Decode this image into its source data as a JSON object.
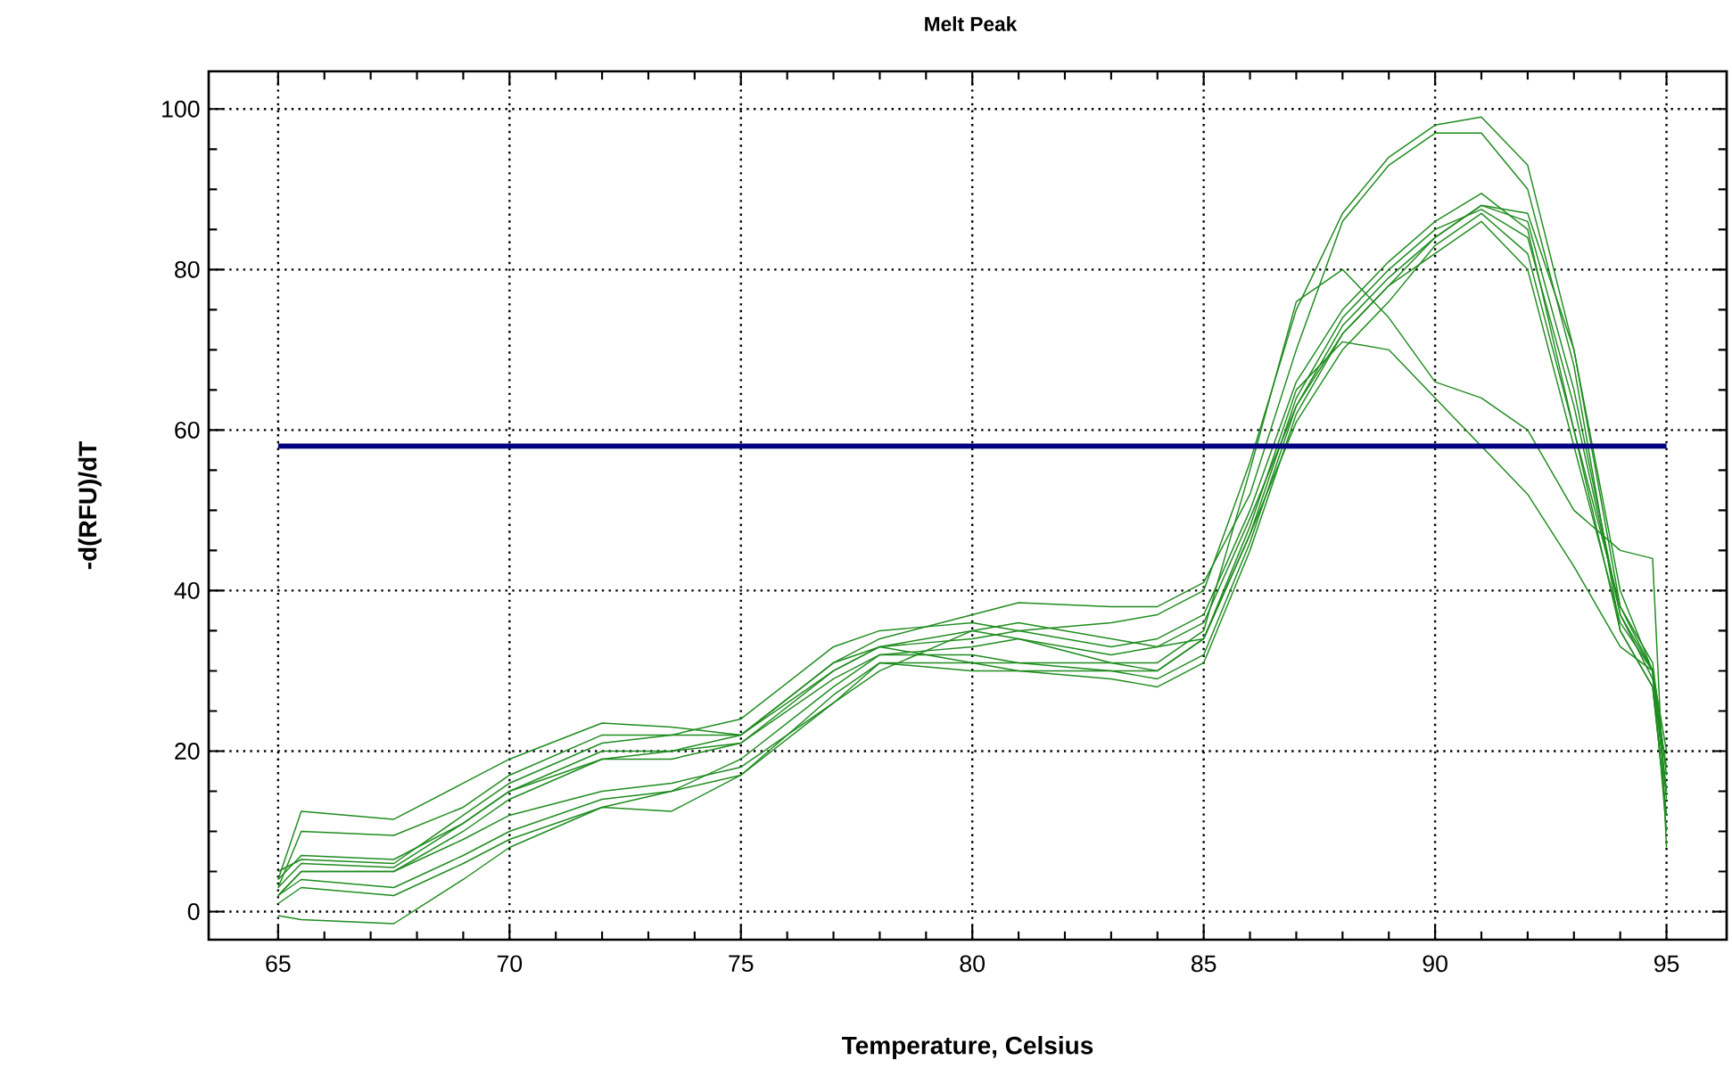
{
  "chart_data": {
    "type": "line",
    "title": "Melt Peak",
    "xlabel": "Temperature, Celsius",
    "ylabel": "-d(RFU)/dT",
    "xlim": [
      63.5,
      96.3
    ],
    "ylim": [
      -3.5,
      104.7
    ],
    "xticks": [
      65,
      70,
      75,
      80,
      85,
      90,
      95
    ],
    "yticks": [
      0,
      20,
      40,
      60,
      80,
      100
    ],
    "grid": true,
    "marker": "none",
    "line_style": "solid",
    "x": [
      65,
      65.5,
      67.5,
      69,
      70,
      72,
      73.5,
      75,
      77,
      78,
      80,
      81,
      83,
      84,
      85,
      86,
      87,
      88,
      89,
      90,
      91,
      92,
      93,
      94,
      94.7,
      95
    ],
    "series": [
      {
        "color": "#1f8c1f",
        "values": [
          4,
          12.5,
          11.5,
          16,
          19,
          23.5,
          23,
          22,
          31,
          34,
          37,
          38.5,
          38,
          38,
          41,
          52,
          70,
          86,
          93,
          97,
          97,
          90,
          68,
          35,
          28,
          12
        ]
      },
      {
        "color": "#1f8c1f",
        "values": [
          3,
          10,
          9.5,
          13,
          17,
          22,
          22,
          24,
          33,
          35,
          36,
          35,
          36,
          37,
          40,
          56,
          75,
          87,
          94,
          98,
          99,
          93,
          70,
          38,
          30,
          10
        ]
      },
      {
        "color": "#1f8c1f",
        "values": [
          5,
          6.5,
          6,
          12,
          16,
          21,
          22,
          22,
          31,
          33,
          34,
          35,
          33,
          34,
          37,
          50,
          66,
          75,
          81,
          86,
          89.5,
          85,
          60,
          38,
          31,
          17
        ]
      },
      {
        "color": "#1f8c1f",
        "values": [
          3,
          6,
          5.5,
          11,
          15,
          20,
          20,
          21,
          30,
          33,
          35,
          34,
          32,
          33,
          36,
          49,
          63,
          72,
          78,
          84,
          88,
          87,
          70,
          40,
          30,
          15
        ]
      },
      {
        "color": "#1f8c1f",
        "values": [
          2,
          5,
          5,
          10,
          14,
          19,
          19,
          21,
          29,
          32,
          33,
          34,
          31,
          30,
          34,
          47,
          61,
          70,
          76,
          83,
          87,
          82,
          60,
          35,
          28,
          12
        ]
      },
      {
        "color": "#1f8c1f",
        "values": [
          4,
          7,
          6.5,
          11,
          15,
          19,
          20,
          22,
          30,
          33,
          31,
          31,
          31,
          31,
          35,
          55,
          76,
          80,
          74,
          66,
          64,
          60,
          50,
          45,
          44,
          8
        ]
      },
      {
        "color": "#1f8c1f",
        "values": [
          2,
          5,
          5,
          9,
          12,
          15,
          16,
          18,
          26,
          31,
          30,
          30,
          30,
          30,
          34,
          48,
          65,
          71,
          70,
          64,
          58,
          52,
          43,
          33,
          30,
          15
        ]
      },
      {
        "color": "#1f8c1f",
        "values": [
          1,
          3,
          2,
          6,
          9,
          13,
          15,
          17,
          27,
          31,
          31,
          30,
          29,
          28,
          31,
          45,
          62,
          72,
          78,
          82,
          86,
          80,
          58,
          36,
          30,
          14
        ]
      },
      {
        "color": "#1f8c1f",
        "values": [
          2,
          4,
          3,
          7,
          10,
          14,
          15,
          19,
          28,
          32,
          32,
          31,
          30,
          29,
          32,
          46,
          63,
          73,
          79,
          84,
          88,
          86,
          65,
          37,
          29,
          18
        ]
      },
      {
        "color": "#1f8c1f",
        "values": [
          -0.5,
          -1,
          -1.5,
          4,
          8,
          13,
          12.5,
          17,
          26,
          30,
          35,
          36,
          34,
          33,
          34,
          47,
          64,
          74,
          80,
          85,
          87.5,
          84,
          63,
          37,
          30,
          20
        ]
      }
    ],
    "ref_lines": [
      {
        "axis": "y",
        "value": 58,
        "color": "#000080",
        "line_style": "solid"
      }
    ]
  }
}
